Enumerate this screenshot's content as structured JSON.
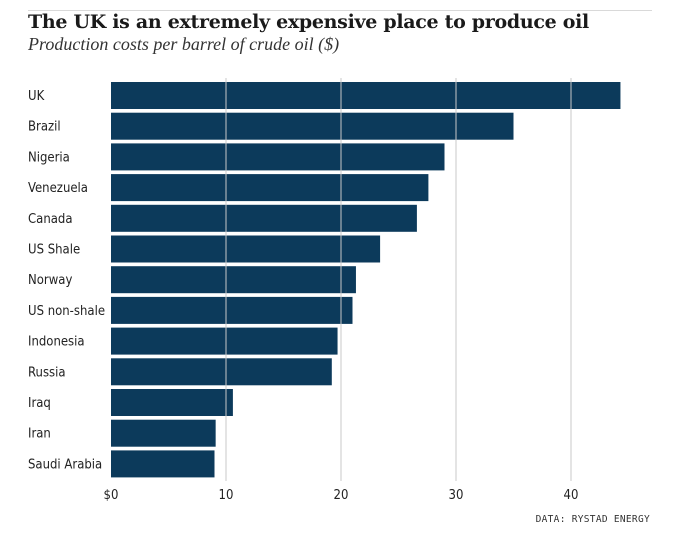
{
  "header": {
    "title": "The UK is an extremely expensive place to produce oil",
    "subtitle": "Production costs per barrel of crude oil ($)"
  },
  "footer": {
    "source": "DATA: RYSTAD ENERGY"
  },
  "colors": {
    "bar": "#0c3a5b",
    "grid": "#c8c8c8",
    "text": "#222222"
  },
  "chart_data": {
    "type": "bar",
    "orientation": "horizontal",
    "title": "The UK is an extremely expensive place to produce oil",
    "subtitle": "Production costs per barrel of crude oil ($)",
    "categories": [
      "UK",
      "Brazil",
      "Nigeria",
      "Venezuela",
      "Canada",
      "US Shale",
      "Norway",
      "US non-shale",
      "Indonesia",
      "Russia",
      "Iraq",
      "Iran",
      "Saudi Arabia"
    ],
    "values": [
      44.3,
      35.0,
      29.0,
      27.6,
      26.6,
      23.4,
      21.3,
      21.0,
      19.7,
      19.2,
      10.6,
      9.1,
      9.0
    ],
    "xlabel": "",
    "ylabel": "",
    "xlim": [
      0,
      46
    ],
    "xticks": [
      0,
      10,
      20,
      30,
      40
    ],
    "xtick_labels": [
      "$0",
      "10",
      "20",
      "30",
      "40"
    ],
    "grid": "vertical",
    "legend": "none"
  }
}
